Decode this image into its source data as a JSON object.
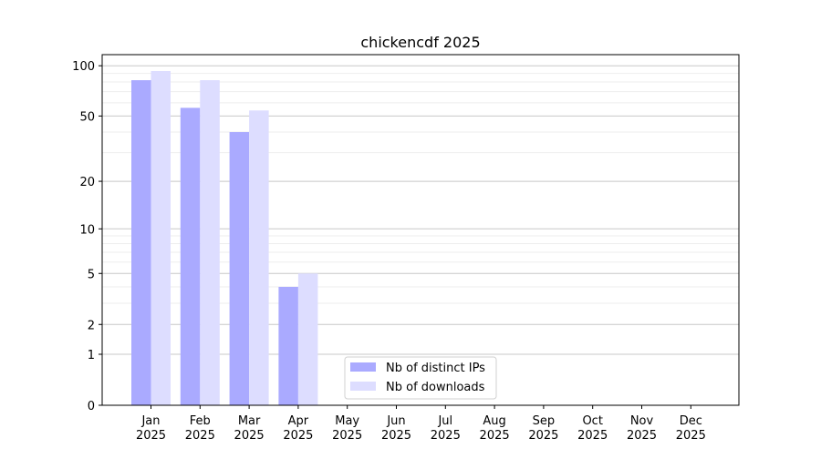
{
  "chart_data": {
    "type": "bar",
    "title": "chickencdf 2025",
    "xlabel": "",
    "ylabel": "",
    "yscale": "log10(1+y)",
    "ylim": [
      0,
      120
    ],
    "yticks": [
      0,
      1,
      2,
      5,
      10,
      20,
      50,
      100
    ],
    "grid": true,
    "legend_placement": "lower-center",
    "categories": [
      "Jan\n2025",
      "Feb\n2025",
      "Mar\n2025",
      "Apr\n2025",
      "May\n2025",
      "Jun\n2025",
      "Jul\n2025",
      "Aug\n2025",
      "Sep\n2025",
      "Oct\n2025",
      "Nov\n2025",
      "Dec\n2025"
    ],
    "series": [
      {
        "name": "Nb of distinct IPs",
        "color": "#aaaaff",
        "values": [
          82,
          56,
          40,
          4,
          0,
          0,
          0,
          0,
          0,
          0,
          0,
          0
        ]
      },
      {
        "name": "Nb of downloads",
        "color": "#ddddff",
        "values": [
          93,
          82,
          54,
          5,
          0,
          0,
          0,
          0,
          0,
          0,
          0,
          0
        ]
      }
    ]
  }
}
